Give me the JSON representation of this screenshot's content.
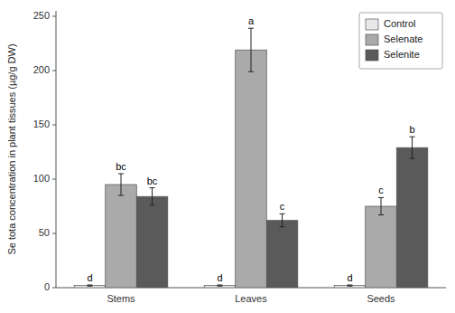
{
  "chart_data": {
    "type": "bar",
    "categories": [
      "Stems",
      "Leaves",
      "Seeds"
    ],
    "series": [
      {
        "name": "Control",
        "color": "#e8e8e8",
        "values": [
          2.0,
          2.0,
          2.0
        ],
        "errors": [
          0.5,
          0.5,
          0.5
        ],
        "annotations": [
          "d",
          "d",
          "d"
        ]
      },
      {
        "name": "Selenate",
        "color": "#aaaaaa",
        "values": [
          95.0,
          219.0,
          75.0
        ],
        "errors": [
          10.0,
          20.0,
          8.0
        ],
        "annotations": [
          "bc",
          "a",
          "c"
        ]
      },
      {
        "name": "Selenite",
        "color": "#5a5a5a",
        "values": [
          84.0,
          62.0,
          129.0
        ],
        "errors": [
          8.0,
          6.0,
          10.0
        ],
        "annotations": [
          "bc",
          "c",
          "b"
        ]
      }
    ],
    "ylabel": "Se tota concentration in plant tissues (µg/g DW)",
    "ylim": [
      0,
      255
    ],
    "yticks": [
      0,
      50,
      100,
      150,
      200,
      250
    ],
    "legend": "upper right",
    "grid": false
  }
}
